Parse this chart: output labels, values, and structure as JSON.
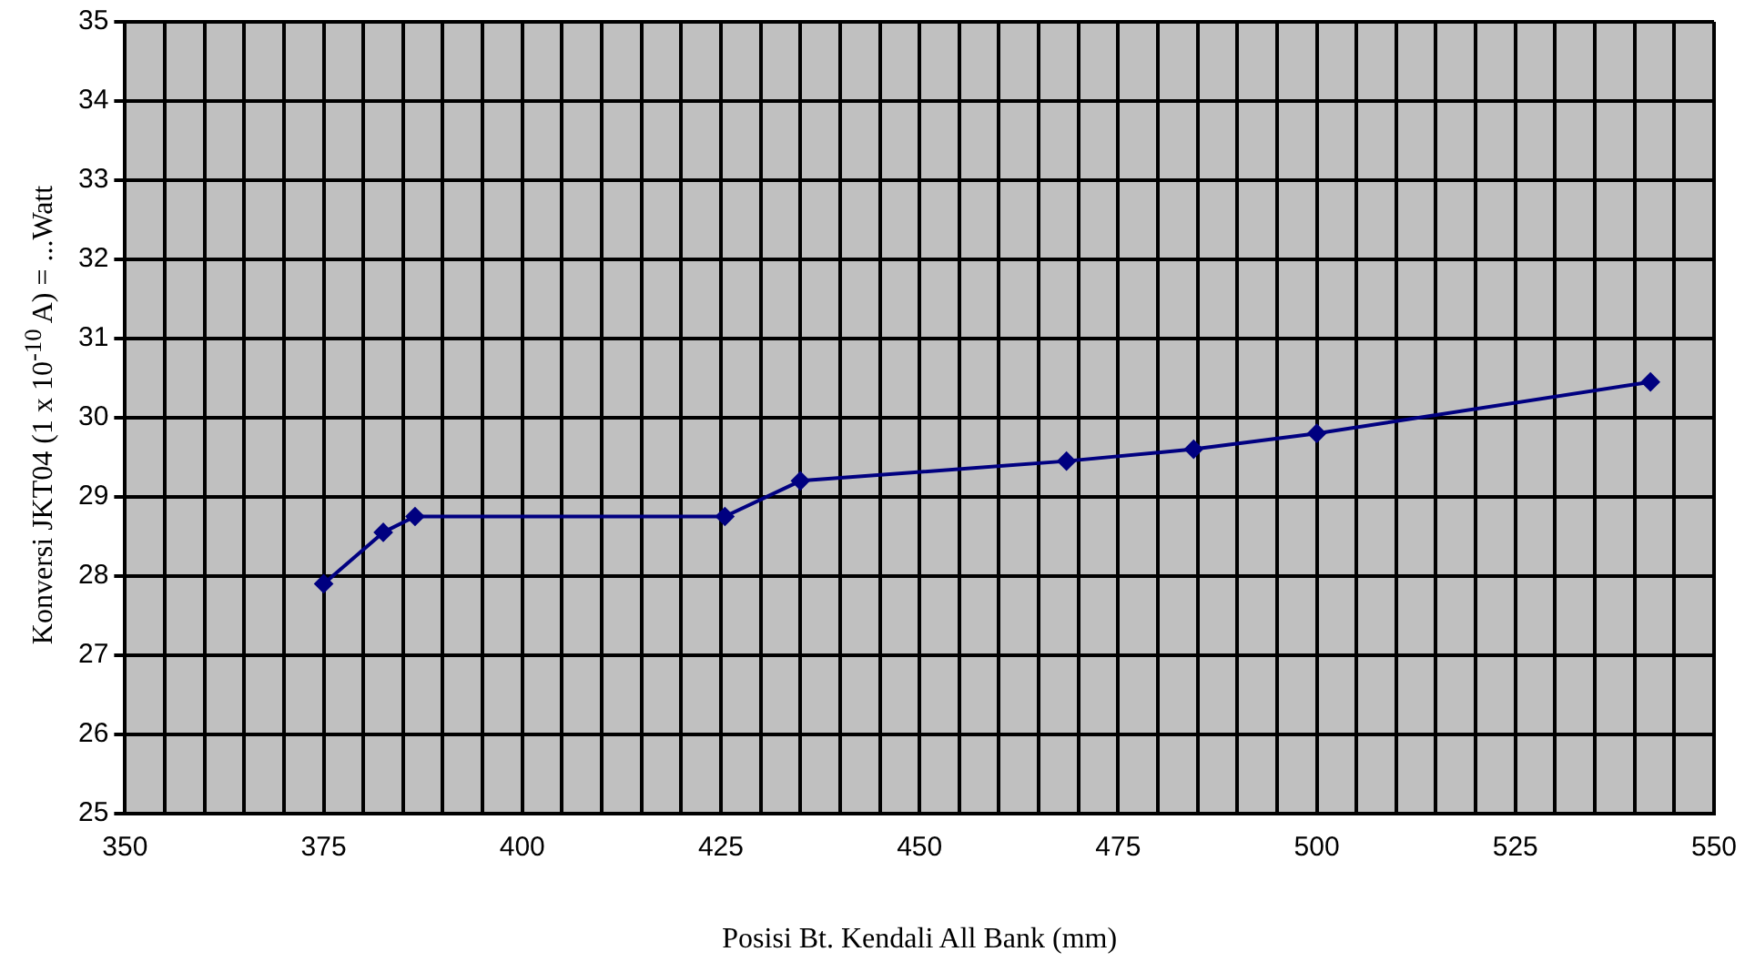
{
  "chart_data": {
    "type": "line",
    "xlabel": "Posisi Bt. Kendali All Bank (mm)",
    "ylabel": "Konversi JKT04 (1 x 10$^{-10}$ A) = ...Watt",
    "x": [
      375,
      382.5,
      386.5,
      425.5,
      435,
      468.5,
      484.5,
      500,
      542
    ],
    "series": [
      {
        "color": "#000080",
        "values": [
          27.9,
          28.55,
          28.75,
          28.75,
          29.2,
          29.45,
          29.6,
          29.8,
          30.45
        ]
      }
    ],
    "xlim": [
      350,
      550
    ],
    "xticks": [
      350,
      {
        "value": 355,
        "label": null
      },
      {
        "value": 360,
        "label": null
      },
      {
        "value": 365,
        "label": null
      },
      {
        "value": 370,
        "label": null
      },
      375,
      {
        "value": 380,
        "label": null
      },
      {
        "value": 385,
        "label": null
      },
      {
        "value": 390,
        "label": null
      },
      {
        "value": 395,
        "label": null
      },
      400,
      {
        "value": 405,
        "label": null
      },
      {
        "value": 410,
        "label": null
      },
      {
        "value": 415,
        "label": null
      },
      {
        "value": 420,
        "label": null
      },
      425,
      {
        "value": 430,
        "label": null
      },
      {
        "value": 435,
        "label": null
      },
      {
        "value": 440,
        "label": null
      },
      {
        "value": 445,
        "label": null
      },
      450,
      {
        "value": 455,
        "label": null
      },
      {
        "value": 460,
        "label": null
      },
      {
        "value": 465,
        "label": null
      },
      {
        "value": 470,
        "label": null
      },
      475,
      {
        "value": 480,
        "label": null
      },
      {
        "value": 485,
        "label": null
      },
      {
        "value": 490,
        "label": null
      },
      {
        "value": 495,
        "label": null
      },
      500,
      {
        "value": 505,
        "label": null
      },
      {
        "value": 510,
        "label": null
      },
      {
        "value": 515,
        "label": null
      },
      {
        "value": 520,
        "label": null
      },
      525,
      {
        "value": 530,
        "label": null
      },
      {
        "value": 535,
        "label": null
      },
      {
        "value": 540,
        "label": null
      },
      {
        "value": 545,
        "label": null
      },
      550
    ],
    "ylim": [
      25,
      35
    ],
    "yticks": [
      25,
      26,
      27,
      28,
      29,
      30,
      31,
      32,
      33,
      34,
      35
    ],
    "grid": true,
    "legend": false,
    "marker": "diamond",
    "line_style": "solid"
  }
}
